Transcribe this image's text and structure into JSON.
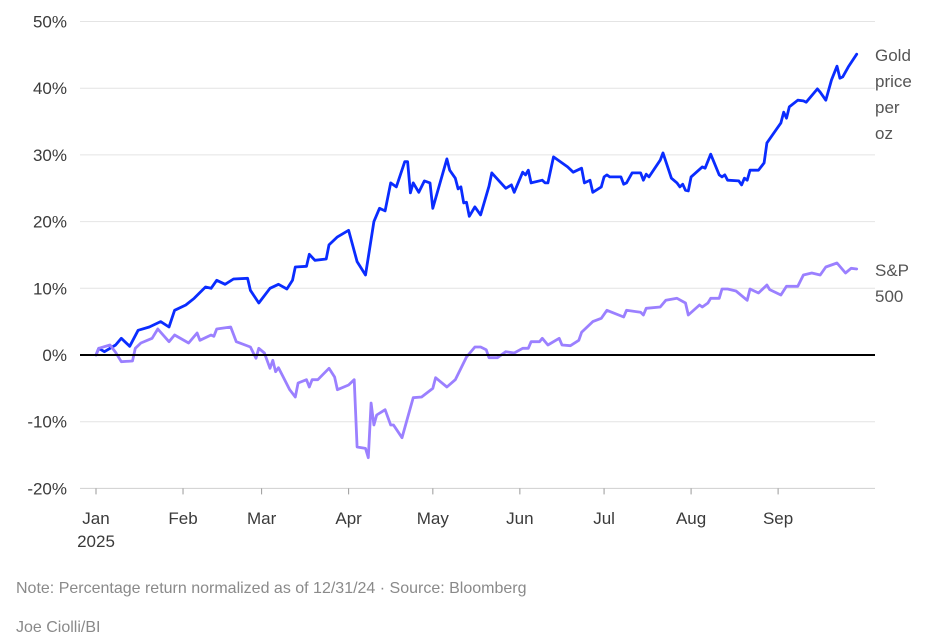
{
  "chart_data": {
    "type": "line",
    "title": "",
    "xlabel": "",
    "ylabel": "",
    "ylim": [
      -20,
      50
    ],
    "xlim": [
      "2025-01-01",
      "2025-09-30"
    ],
    "grid": true,
    "y_ticks": [
      "50%",
      "40%",
      "30%",
      "20%",
      "10%",
      "0%",
      "-10%",
      "-20%"
    ],
    "y_tick_values": [
      50,
      40,
      30,
      20,
      10,
      0,
      -10,
      -20
    ],
    "x_ticks": [
      {
        "date": "2025-01-01",
        "label": "Jan",
        "sub": "2025"
      },
      {
        "date": "2025-02-01",
        "label": "Feb"
      },
      {
        "date": "2025-03-01",
        "label": "Mar"
      },
      {
        "date": "2025-04-01",
        "label": "Apr"
      },
      {
        "date": "2025-05-01",
        "label": "May"
      },
      {
        "date": "2025-06-01",
        "label": "Jun"
      },
      {
        "date": "2025-07-01",
        "label": "Jul"
      },
      {
        "date": "2025-08-01",
        "label": "Aug"
      },
      {
        "date": "2025-09-01",
        "label": "Sep"
      }
    ],
    "legend_placement": "right-end-labels",
    "series": [
      {
        "name": "Gold price per oz",
        "label_lines": [
          "Gold",
          "price",
          "per",
          "oz"
        ],
        "color": "#0a2cff",
        "points": [
          [
            "2025-01-01",
            0
          ],
          [
            "2025-01-02",
            1
          ],
          [
            "2025-01-04",
            0.5
          ],
          [
            "2025-01-08",
            1.5
          ],
          [
            "2025-01-10",
            2.5
          ],
          [
            "2025-01-13",
            1.3
          ],
          [
            "2025-01-16",
            3.7
          ],
          [
            "2025-01-20",
            4.2
          ],
          [
            "2025-01-24",
            5
          ],
          [
            "2025-01-27",
            4.2
          ],
          [
            "2025-01-29",
            6.7
          ],
          [
            "2025-02-02",
            7.5
          ],
          [
            "2025-02-05",
            8.5
          ],
          [
            "2025-02-09",
            10.2
          ],
          [
            "2025-02-11",
            10
          ],
          [
            "2025-02-13",
            11.2
          ],
          [
            "2025-02-16",
            10.6
          ],
          [
            "2025-02-19",
            11.4
          ],
          [
            "2025-02-24",
            11.5
          ],
          [
            "2025-02-25",
            9.7
          ],
          [
            "2025-02-28",
            7.8
          ],
          [
            "2025-03-04",
            10
          ],
          [
            "2025-03-07",
            10.6
          ],
          [
            "2025-03-10",
            9.9
          ],
          [
            "2025-03-12",
            11.2
          ],
          [
            "2025-03-13",
            13.2
          ],
          [
            "2025-03-17",
            13.3
          ],
          [
            "2025-03-18",
            15.1
          ],
          [
            "2025-03-20",
            14.2
          ],
          [
            "2025-03-24",
            14.4
          ],
          [
            "2025-03-25",
            16.5
          ],
          [
            "2025-03-28",
            17.7
          ],
          [
            "2025-04-01",
            18.7
          ],
          [
            "2025-04-04",
            14
          ],
          [
            "2025-04-07",
            12
          ],
          [
            "2025-04-10",
            20
          ],
          [
            "2025-04-12",
            22
          ],
          [
            "2025-04-14",
            21.6
          ],
          [
            "2025-04-16",
            25.8
          ],
          [
            "2025-04-18",
            25.2
          ],
          [
            "2025-04-21",
            29
          ],
          [
            "2025-04-22",
            29
          ],
          [
            "2025-04-23",
            24.3
          ],
          [
            "2025-04-24",
            25.8
          ],
          [
            "2025-04-26",
            24.4
          ],
          [
            "2025-04-28",
            26.1
          ],
          [
            "2025-04-30",
            25.8
          ],
          [
            "2025-05-01",
            22
          ],
          [
            "2025-05-06",
            29.4
          ],
          [
            "2025-05-07",
            27.7
          ],
          [
            "2025-05-09",
            26.5
          ],
          [
            "2025-05-10",
            24.9
          ],
          [
            "2025-05-11",
            25.2
          ],
          [
            "2025-05-12",
            22.8
          ],
          [
            "2025-05-13",
            22.9
          ],
          [
            "2025-05-14",
            20.8
          ],
          [
            "2025-05-16",
            22.2
          ],
          [
            "2025-05-18",
            21
          ],
          [
            "2025-05-21",
            25.3
          ],
          [
            "2025-05-22",
            27.3
          ],
          [
            "2025-05-27",
            25
          ],
          [
            "2025-05-29",
            25.5
          ],
          [
            "2025-05-30",
            24.4
          ],
          [
            "2025-06-02",
            27.4
          ],
          [
            "2025-06-03",
            27
          ],
          [
            "2025-06-04",
            27.7
          ],
          [
            "2025-06-05",
            25.8
          ],
          [
            "2025-06-09",
            26.2
          ],
          [
            "2025-06-10",
            25.8
          ],
          [
            "2025-06-11",
            25.8
          ],
          [
            "2025-06-13",
            29.7
          ],
          [
            "2025-06-18",
            28.2
          ],
          [
            "2025-06-20",
            27.4
          ],
          [
            "2025-06-23",
            28
          ],
          [
            "2025-06-24",
            25.8
          ],
          [
            "2025-06-26",
            26.2
          ],
          [
            "2025-06-27",
            24.4
          ],
          [
            "2025-06-30",
            25.2
          ],
          [
            "2025-07-01",
            26.7
          ],
          [
            "2025-07-02",
            27
          ],
          [
            "2025-07-03",
            26.7
          ],
          [
            "2025-07-07",
            26.7
          ],
          [
            "2025-07-08",
            25.6
          ],
          [
            "2025-07-09",
            25.8
          ],
          [
            "2025-07-11",
            27.3
          ],
          [
            "2025-07-14",
            27.3
          ],
          [
            "2025-07-15",
            26.2
          ],
          [
            "2025-07-16",
            27.1
          ],
          [
            "2025-07-17",
            26.7
          ],
          [
            "2025-07-21",
            29.2
          ],
          [
            "2025-07-22",
            30.3
          ],
          [
            "2025-07-25",
            26.5
          ],
          [
            "2025-07-27",
            25.8
          ],
          [
            "2025-07-28",
            25.2
          ],
          [
            "2025-07-29",
            25.6
          ],
          [
            "2025-07-30",
            24.7
          ],
          [
            "2025-07-31",
            24.6
          ],
          [
            "2025-08-01",
            26.7
          ],
          [
            "2025-08-05",
            28.2
          ],
          [
            "2025-08-06",
            28
          ],
          [
            "2025-08-08",
            30.1
          ],
          [
            "2025-08-11",
            27
          ],
          [
            "2025-08-12",
            26.7
          ],
          [
            "2025-08-13",
            27
          ],
          [
            "2025-08-14",
            26.2
          ],
          [
            "2025-08-18",
            26.1
          ],
          [
            "2025-08-19",
            25.5
          ],
          [
            "2025-08-20",
            26.5
          ],
          [
            "2025-08-21",
            26.2
          ],
          [
            "2025-08-22",
            27.7
          ],
          [
            "2025-08-25",
            27.7
          ],
          [
            "2025-08-27",
            28.8
          ],
          [
            "2025-08-28",
            31.8
          ],
          [
            "2025-09-02",
            34.8
          ],
          [
            "2025-09-03",
            36.4
          ],
          [
            "2025-09-04",
            35.5
          ],
          [
            "2025-09-05",
            37.2
          ],
          [
            "2025-09-08",
            38.2
          ],
          [
            "2025-09-10",
            38.1
          ],
          [
            "2025-09-11",
            37.9
          ],
          [
            "2025-09-15",
            39.9
          ],
          [
            "2025-09-16",
            39.4
          ],
          [
            "2025-09-18",
            38.2
          ],
          [
            "2025-09-20",
            41.2
          ],
          [
            "2025-09-22",
            43.3
          ],
          [
            "2025-09-23",
            41.5
          ],
          [
            "2025-09-24",
            41.7
          ],
          [
            "2025-09-26",
            43.2
          ],
          [
            "2025-09-29",
            45.1
          ]
        ]
      },
      {
        "name": "S&P 500",
        "label_lines": [
          "S&P",
          "500"
        ],
        "color": "#9b80ff",
        "points": [
          [
            "2025-01-01",
            0
          ],
          [
            "2025-01-02",
            1
          ],
          [
            "2025-01-06",
            1.5
          ],
          [
            "2025-01-08",
            0.4
          ],
          [
            "2025-01-10",
            -1
          ],
          [
            "2025-01-14",
            -0.9
          ],
          [
            "2025-01-15",
            1
          ],
          [
            "2025-01-17",
            1.8
          ],
          [
            "2025-01-21",
            2.5
          ],
          [
            "2025-01-23",
            3.9
          ],
          [
            "2025-01-27",
            2
          ],
          [
            "2025-01-29",
            3
          ],
          [
            "2025-02-03",
            1.8
          ],
          [
            "2025-02-06",
            3.3
          ],
          [
            "2025-02-07",
            2.2
          ],
          [
            "2025-02-11",
            3
          ],
          [
            "2025-02-12",
            2.8
          ],
          [
            "2025-02-13",
            3.9
          ],
          [
            "2025-02-18",
            4.2
          ],
          [
            "2025-02-20",
            2
          ],
          [
            "2025-02-25",
            1.2
          ],
          [
            "2025-02-27",
            -0.5
          ],
          [
            "2025-02-28",
            1
          ],
          [
            "2025-03-02",
            0.3
          ],
          [
            "2025-03-04",
            -2
          ],
          [
            "2025-03-05",
            -0.8
          ],
          [
            "2025-03-06",
            -2.5
          ],
          [
            "2025-03-07",
            -1.9
          ],
          [
            "2025-03-11",
            -5.2
          ],
          [
            "2025-03-13",
            -6.3
          ],
          [
            "2025-03-14",
            -4.2
          ],
          [
            "2025-03-17",
            -3.7
          ],
          [
            "2025-03-18",
            -4.8
          ],
          [
            "2025-03-19",
            -3.7
          ],
          [
            "2025-03-21",
            -3.7
          ],
          [
            "2025-03-25",
            -2
          ],
          [
            "2025-03-27",
            -3.3
          ],
          [
            "2025-03-28",
            -5.2
          ],
          [
            "2025-04-01",
            -4.5
          ],
          [
            "2025-04-03",
            -3.7
          ],
          [
            "2025-04-04",
            -13.8
          ],
          [
            "2025-04-07",
            -14
          ],
          [
            "2025-04-08",
            -15.4
          ],
          [
            "2025-04-09",
            -7.2
          ],
          [
            "2025-04-10",
            -10.5
          ],
          [
            "2025-04-11",
            -9
          ],
          [
            "2025-04-14",
            -8.2
          ],
          [
            "2025-04-16",
            -10.5
          ],
          [
            "2025-04-17",
            -10.5
          ],
          [
            "2025-04-20",
            -12.4
          ],
          [
            "2025-04-24",
            -6.4
          ],
          [
            "2025-04-27",
            -6.3
          ],
          [
            "2025-05-01",
            -5
          ],
          [
            "2025-05-02",
            -3.4
          ],
          [
            "2025-05-06",
            -4.8
          ],
          [
            "2025-05-09",
            -3.7
          ],
          [
            "2025-05-13",
            -0.3
          ],
          [
            "2025-05-16",
            1.2
          ],
          [
            "2025-05-18",
            1.2
          ],
          [
            "2025-05-20",
            0.8
          ],
          [
            "2025-05-21",
            -0.4
          ],
          [
            "2025-05-24",
            -0.4
          ],
          [
            "2025-05-27",
            0.5
          ],
          [
            "2025-05-30",
            0.3
          ],
          [
            "2025-06-02",
            1
          ],
          [
            "2025-06-04",
            1
          ],
          [
            "2025-06-05",
            2
          ],
          [
            "2025-06-08",
            2
          ],
          [
            "2025-06-09",
            2.5
          ],
          [
            "2025-06-11",
            1.5
          ],
          [
            "2025-06-15",
            2.5
          ],
          [
            "2025-06-16",
            1.5
          ],
          [
            "2025-06-19",
            1.4
          ],
          [
            "2025-06-22",
            2.2
          ],
          [
            "2025-06-23",
            3.4
          ],
          [
            "2025-06-27",
            5
          ],
          [
            "2025-06-30",
            5.5
          ],
          [
            "2025-07-02",
            6.7
          ],
          [
            "2025-07-08",
            5.7
          ],
          [
            "2025-07-09",
            6.7
          ],
          [
            "2025-07-14",
            6.4
          ],
          [
            "2025-07-15",
            6
          ],
          [
            "2025-07-16",
            7
          ],
          [
            "2025-07-21",
            7.2
          ],
          [
            "2025-07-23",
            8.2
          ],
          [
            "2025-07-27",
            8.5
          ],
          [
            "2025-07-30",
            7.8
          ],
          [
            "2025-07-31",
            6
          ],
          [
            "2025-08-04",
            7.5
          ],
          [
            "2025-08-05",
            7.2
          ],
          [
            "2025-08-07",
            7.8
          ],
          [
            "2025-08-08",
            8.5
          ],
          [
            "2025-08-11",
            8.5
          ],
          [
            "2025-08-12",
            9.9
          ],
          [
            "2025-08-14",
            9.9
          ],
          [
            "2025-08-17",
            9.6
          ],
          [
            "2025-08-21",
            8.2
          ],
          [
            "2025-08-22",
            9.9
          ],
          [
            "2025-08-25",
            9.3
          ],
          [
            "2025-08-28",
            10.5
          ],
          [
            "2025-08-29",
            9.8
          ],
          [
            "2025-09-02",
            9
          ],
          [
            "2025-09-04",
            10.3
          ],
          [
            "2025-09-08",
            10.3
          ],
          [
            "2025-09-10",
            12
          ],
          [
            "2025-09-13",
            12.3
          ],
          [
            "2025-09-16",
            12
          ],
          [
            "2025-09-18",
            13.2
          ],
          [
            "2025-09-22",
            13.8
          ],
          [
            "2025-09-25",
            12.3
          ],
          [
            "2025-09-27",
            13
          ],
          [
            "2025-09-29",
            12.9
          ]
        ]
      }
    ]
  },
  "footer": {
    "note": "Note: Percentage return normalized as of 12/31/24 · Source: Bloomberg",
    "credit": "Joe Ciolli/BI"
  }
}
